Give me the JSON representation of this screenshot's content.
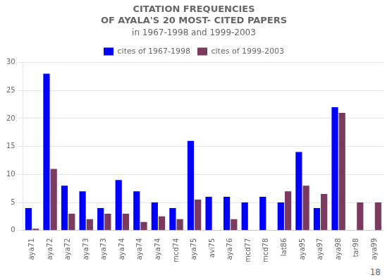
{
  "chart_data": {
    "type": "bar",
    "title": [
      "CITATION FREQUENCIES",
      "OF AYALA'S 20 MOST- CITED PAPERS"
    ],
    "subtitle": "in 1967-1998 and 1999-2003",
    "annotation": "18",
    "categories": [
      "aya71",
      "aya72",
      "aya72",
      "aya73",
      "aya73",
      "aya74",
      "aya74",
      "aya74",
      "mcd74",
      "aya75",
      "avi75",
      "aya76",
      "mcd77",
      "mcd78",
      "lat86",
      "aya95",
      "aya97",
      "aya98",
      "tar98",
      "aya99"
    ],
    "series": [
      {
        "name": "cites of 1967-1998",
        "color": "#0000FF",
        "values": [
          4,
          28,
          8,
          7,
          4,
          9,
          7,
          5,
          4,
          16,
          6,
          6,
          5,
          6,
          5,
          14,
          4,
          22,
          0,
          0
        ]
      },
      {
        "name": "cites of 1999-2003",
        "color": "#7B3B5E",
        "values": [
          0.3,
          11,
          3,
          2,
          3,
          3,
          1.5,
          2.5,
          2,
          5.5,
          0,
          2,
          0,
          0,
          7,
          8,
          6.5,
          21,
          5,
          5
        ]
      }
    ],
    "ylim": [
      0,
      30
    ],
    "yticks": [
      0,
      5,
      10,
      15,
      20,
      25,
      30
    ],
    "grid": true,
    "legend": "top"
  }
}
